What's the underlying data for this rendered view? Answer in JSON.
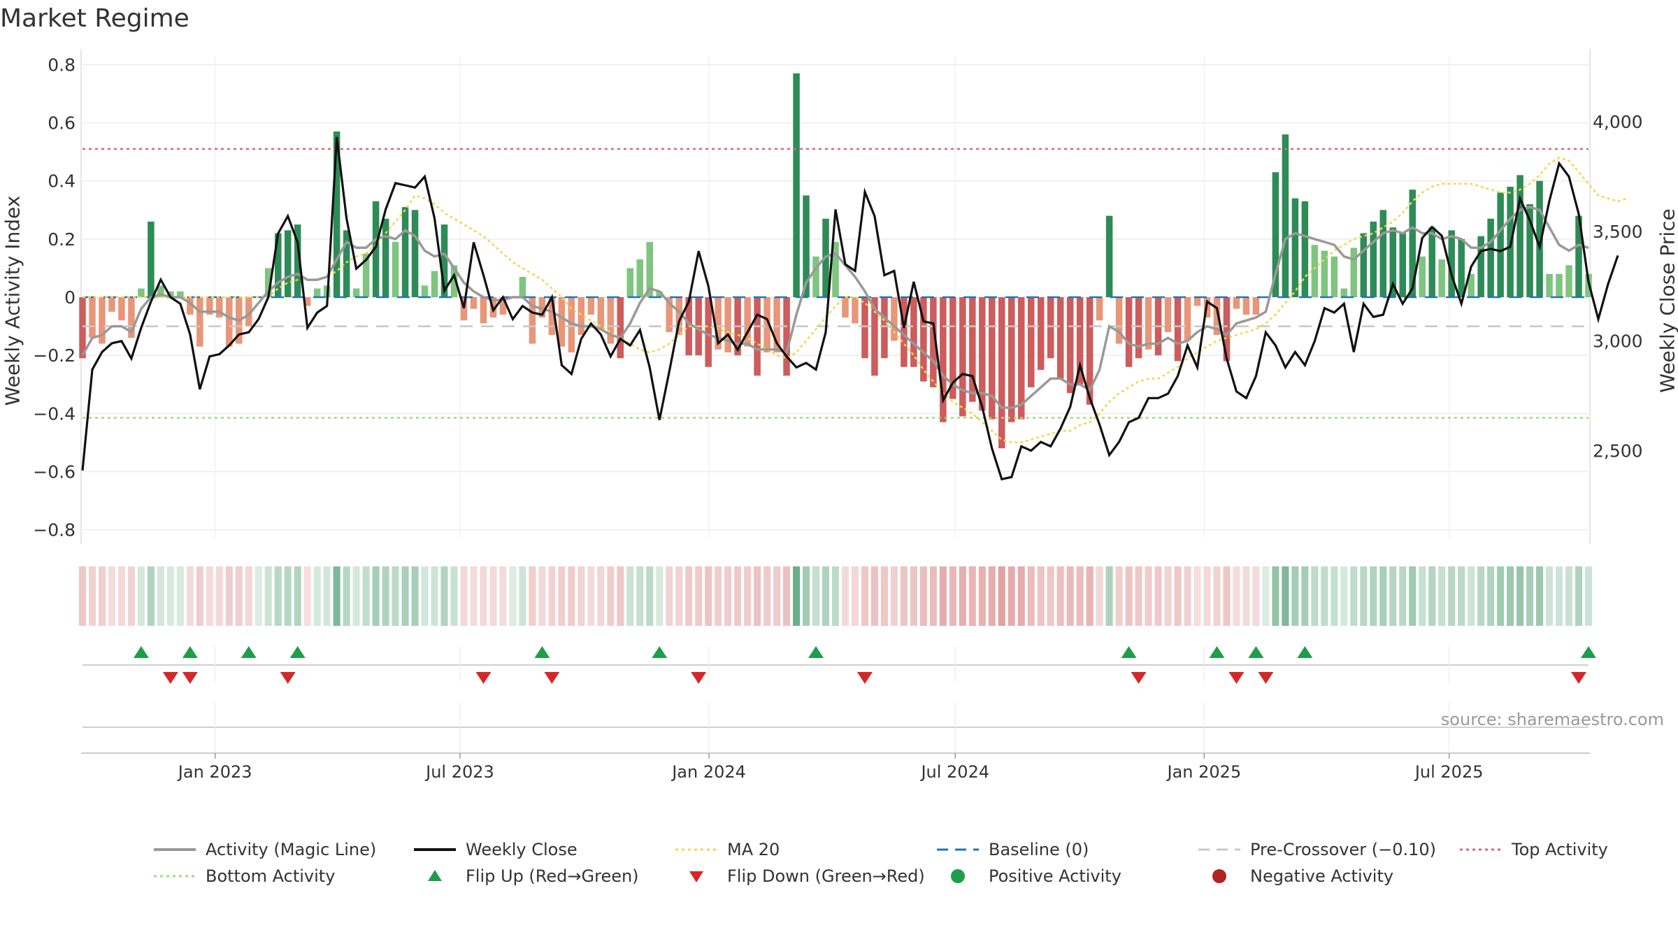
{
  "chart_data": {
    "type": "bar+line",
    "title": "Market Regime",
    "ylabel_left": "Weekly Activity Index",
    "ylabel_right": "Weekly Close Price",
    "ylim_left": [
      -0.83,
      0.83
    ],
    "ylim_right": [
      2100,
      4300
    ],
    "yticks_left": [
      0.8,
      0.6,
      0.4,
      0.2,
      0,
      -0.2,
      -0.4,
      -0.6,
      -0.8
    ],
    "yticks_left_labels": [
      "0.8",
      "0.6",
      "0.4",
      "0.2",
      "0",
      "−0.2",
      "−0.4",
      "−0.6",
      "−0.8"
    ],
    "yticks_right": [
      4000,
      3500,
      3000,
      2500
    ],
    "yticks_right_labels": [
      "4,000",
      "3,500",
      "3,000",
      "2,500"
    ],
    "x_date_range": [
      "2022-09-25",
      "2025-10-12"
    ],
    "xticks": [
      "2023-01-01",
      "2023-07-01",
      "2024-01-01",
      "2024-07-01",
      "2025-01-01",
      "2025-07-01"
    ],
    "xtick_labels": [
      "Jan 2023",
      "Jul 2023",
      "Jan 2024",
      "Jul 2024",
      "Jan 2025",
      "Jul 2025"
    ],
    "top_activity": 0.51,
    "bottom_activity": -0.415,
    "pre_crossover": -0.1,
    "baseline": 0,
    "colors": {
      "strong_green": "#2e8b57",
      "light_green": "#7fc47f",
      "strong_red": "#cd5c5c",
      "light_red": "#e8967a",
      "magic_line": "#999999",
      "close": "#111111",
      "ma20": "#f1d84b",
      "baseline": "#1f77b4",
      "pre_crossover": "#c8c8c8",
      "top": "#d9667a",
      "bottom": "#a6d97a",
      "flip_up": "#1e9e4a",
      "flip_down": "#d62728"
    },
    "activity": [
      -0.21,
      -0.14,
      -0.16,
      -0.05,
      -0.08,
      -0.14,
      0.03,
      0.26,
      0.04,
      0.02,
      0.02,
      -0.06,
      -0.17,
      -0.06,
      -0.07,
      -0.17,
      -0.16,
      -0.1,
      0.0,
      0.1,
      0.22,
      0.23,
      0.25,
      -0.03,
      0.03,
      0.04,
      0.57,
      0.23,
      0.03,
      0.15,
      0.33,
      0.27,
      0.19,
      0.31,
      0.3,
      0.04,
      0.09,
      0.25,
      0.11,
      -0.08,
      -0.04,
      -0.09,
      -0.07,
      -0.06,
      0.0,
      0.07,
      -0.16,
      -0.07,
      -0.13,
      -0.17,
      -0.19,
      -0.13,
      -0.06,
      -0.11,
      -0.16,
      -0.21,
      0.1,
      0.13,
      0.19,
      0.02,
      -0.12,
      -0.13,
      -0.2,
      -0.2,
      -0.24,
      -0.18,
      -0.19,
      -0.2,
      -0.17,
      -0.27,
      -0.19,
      -0.19,
      -0.27,
      0.77,
      0.35,
      0.14,
      0.27,
      0.19,
      -0.07,
      -0.09,
      -0.21,
      -0.27,
      -0.21,
      -0.15,
      -0.24,
      -0.24,
      -0.29,
      -0.31,
      -0.43,
      -0.35,
      -0.41,
      -0.36,
      -0.39,
      -0.42,
      -0.52,
      -0.43,
      -0.42,
      -0.31,
      -0.25,
      -0.21,
      -0.28,
      -0.33,
      -0.3,
      -0.37,
      -0.08,
      0.28,
      -0.16,
      -0.24,
      -0.21,
      -0.18,
      -0.2,
      -0.12,
      -0.22,
      -0.15,
      -0.03,
      -0.07,
      -0.13,
      -0.22,
      -0.04,
      -0.06,
      -0.06,
      0.0,
      0.43,
      0.56,
      0.34,
      0.33,
      0.18,
      0.16,
      0.14,
      0.03,
      0.17,
      0.22,
      0.26,
      0.3,
      0.24,
      0.22,
      0.37,
      0.14,
      0.24,
      0.13,
      0.23,
      0.2,
      0.08,
      0.21,
      0.27,
      0.36,
      0.38,
      0.42,
      0.32,
      0.4,
      0.08,
      0.08,
      0.11,
      0.28,
      0.08
    ],
    "magic_line": [
      -0.2,
      -0.14,
      -0.13,
      -0.1,
      -0.1,
      -0.12,
      -0.04,
      0.0,
      0.01,
      0.0,
      0.0,
      -0.02,
      -0.05,
      -0.05,
      -0.05,
      -0.07,
      -0.08,
      -0.06,
      -0.02,
      0.02,
      0.05,
      0.07,
      0.08,
      0.06,
      0.06,
      0.07,
      0.13,
      0.19,
      0.17,
      0.17,
      0.2,
      0.21,
      0.2,
      0.23,
      0.21,
      0.16,
      0.14,
      0.15,
      0.1,
      0.05,
      0.02,
      0.0,
      -0.01,
      -0.01,
      0.0,
      0.0,
      -0.03,
      -0.04,
      -0.05,
      -0.07,
      -0.09,
      -0.1,
      -0.1,
      -0.11,
      -0.13,
      -0.14,
      -0.09,
      -0.02,
      0.03,
      0.02,
      -0.02,
      -0.05,
      -0.09,
      -0.11,
      -0.13,
      -0.14,
      -0.15,
      -0.16,
      -0.16,
      -0.18,
      -0.18,
      -0.18,
      -0.19,
      -0.06,
      0.05,
      0.1,
      0.14,
      0.15,
      0.11,
      0.07,
      0.02,
      -0.04,
      -0.07,
      -0.1,
      -0.13,
      -0.16,
      -0.19,
      -0.22,
      -0.27,
      -0.3,
      -0.32,
      -0.33,
      -0.33,
      -0.34,
      -0.38,
      -0.38,
      -0.37,
      -0.34,
      -0.31,
      -0.28,
      -0.28,
      -0.3,
      -0.3,
      -0.32,
      -0.25,
      -0.1,
      -0.12,
      -0.16,
      -0.17,
      -0.16,
      -0.16,
      -0.14,
      -0.16,
      -0.15,
      -0.12,
      -0.1,
      -0.11,
      -0.13,
      -0.09,
      -0.08,
      -0.07,
      -0.05,
      0.08,
      0.2,
      0.22,
      0.21,
      0.2,
      0.19,
      0.18,
      0.14,
      0.13,
      0.16,
      0.19,
      0.22,
      0.23,
      0.22,
      0.24,
      0.22,
      0.22,
      0.2,
      0.21,
      0.2,
      0.17,
      0.17,
      0.19,
      0.23,
      0.27,
      0.3,
      0.31,
      0.3,
      0.24,
      0.18,
      0.16,
      0.18,
      0.17
    ],
    "weekly_close": [
      2410,
      2870,
      2950,
      2990,
      3000,
      2920,
      3060,
      3180,
      3280,
      3200,
      3170,
      3030,
      2780,
      2930,
      2940,
      2980,
      3030,
      3040,
      3100,
      3200,
      3490,
      3570,
      3450,
      3060,
      3130,
      3160,
      3930,
      3560,
      3330,
      3370,
      3430,
      3600,
      3720,
      3710,
      3700,
      3750,
      3560,
      3230,
      3300,
      3150,
      3450,
      3300,
      3140,
      3200,
      3100,
      3160,
      3130,
      3120,
      3200,
      2890,
      2850,
      3010,
      3080,
      3030,
      2930,
      3010,
      2980,
      3050,
      2880,
      2640,
      2860,
      3090,
      3180,
      3410,
      3250,
      2990,
      3030,
      2960,
      3040,
      3120,
      3100,
      2990,
      2930,
      2880,
      2900,
      2870,
      3040,
      3600,
      3350,
      3320,
      3680,
      3570,
      3300,
      3320,
      3060,
      3270,
      3090,
      3080,
      2730,
      2810,
      2850,
      2840,
      2700,
      2510,
      2370,
      2380,
      2520,
      2500,
      2540,
      2520,
      2600,
      2700,
      2890,
      2740,
      2620,
      2480,
      2540,
      2630,
      2650,
      2740,
      2740,
      2760,
      2840,
      2980,
      2880,
      3180,
      3150,
      2920,
      2770,
      2740,
      2840,
      3040,
      2980,
      2880,
      2950,
      2890,
      3000,
      3150,
      3130,
      3170,
      2950,
      3170,
      3110,
      3120,
      3260,
      3170,
      3240,
      3470,
      3520,
      3480,
      3300,
      3170,
      3340,
      3410,
      3420,
      3410,
      3430,
      3650,
      3550,
      3430,
      3640,
      3810,
      3750,
      3580,
      3270,
      3100,
      3260,
      3390
    ],
    "ma20": [
      0,
      0,
      0,
      0,
      0,
      0,
      0,
      0,
      0,
      0,
      0,
      0,
      0,
      0,
      0,
      0,
      0,
      0,
      0,
      0.0,
      0.03,
      0.05,
      0.06,
      0.06,
      0.06,
      0.07,
      0.09,
      0.12,
      0.14,
      0.15,
      0.18,
      0.22,
      0.26,
      0.3,
      0.35,
      0.34,
      0.32,
      0.29,
      0.27,
      0.25,
      0.23,
      0.21,
      0.18,
      0.15,
      0.12,
      0.1,
      0.08,
      0.06,
      0.03,
      0.0,
      -0.04,
      -0.06,
      -0.08,
      -0.1,
      -0.12,
      -0.14,
      -0.16,
      -0.18,
      -0.19,
      -0.18,
      -0.16,
      -0.13,
      -0.1,
      -0.1,
      -0.1,
      -0.11,
      -0.12,
      -0.13,
      -0.14,
      -0.16,
      -0.18,
      -0.2,
      -0.21,
      -0.19,
      -0.15,
      -0.11,
      -0.07,
      -0.03,
      0.0,
      0.0,
      -0.02,
      -0.05,
      -0.08,
      -0.12,
      -0.16,
      -0.2,
      -0.25,
      -0.29,
      -0.33,
      -0.36,
      -0.38,
      -0.4,
      -0.43,
      -0.46,
      -0.49,
      -0.5,
      -0.5,
      -0.49,
      -0.48,
      -0.47,
      -0.46,
      -0.46,
      -0.44,
      -0.43,
      -0.4,
      -0.36,
      -0.33,
      -0.31,
      -0.29,
      -0.28,
      -0.28,
      -0.26,
      -0.24,
      -0.21,
      -0.19,
      -0.17,
      -0.15,
      -0.14,
      -0.13,
      -0.12,
      -0.11,
      -0.09,
      -0.06,
      -0.02,
      0.02,
      0.07,
      0.1,
      0.13,
      0.16,
      0.18,
      0.2,
      0.21,
      0.22,
      0.24,
      0.26,
      0.29,
      0.33,
      0.36,
      0.38,
      0.39,
      0.39,
      0.39,
      0.39,
      0.38,
      0.37,
      0.36,
      0.36,
      0.37,
      0.39,
      0.42,
      0.46,
      0.48,
      0.47,
      0.43,
      0.39,
      0.35,
      0.34,
      0.33,
      0.34
    ],
    "flips_up_idx": [
      6,
      11,
      17,
      22,
      47,
      59,
      75,
      107,
      116,
      120,
      125,
      154
    ],
    "flips_down_idx": [
      9,
      11,
      21,
      41,
      48,
      63,
      80,
      108,
      118,
      121,
      153
    ],
    "legend": [
      "Activity (Magic Line)",
      "Weekly Close",
      "MA 20",
      "Baseline (0)",
      "Pre-Crossover (−0.10)",
      "Top Activity",
      "Bottom Activity",
      "Flip Up (Red→Green)",
      "Flip Down (Green→Red)",
      "Positive Activity",
      "Negative Activity"
    ]
  },
  "source_text": "source: sharemaestro.com"
}
